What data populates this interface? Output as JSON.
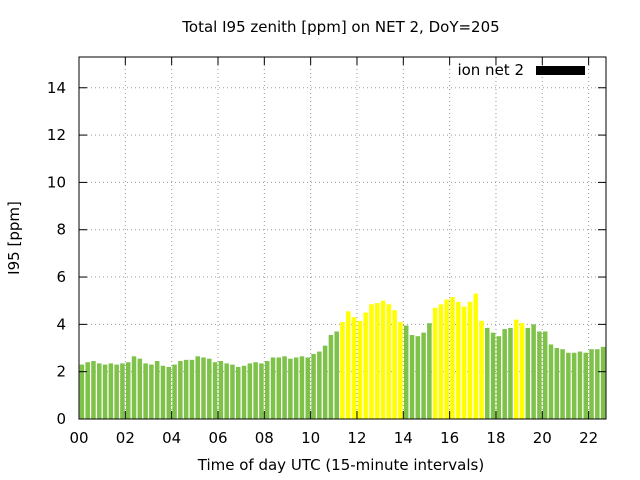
{
  "chart_data": {
    "type": "bar",
    "title": "Total I95 zenith [ppm] on NET 2, DoY=205",
    "xlabel": "Time of day UTC (15-minute intervals)",
    "ylabel": "I95 [ppm]",
    "xlim": [
      0,
      22.75
    ],
    "ylim": [
      0,
      15.3
    ],
    "yticks": [
      0,
      2,
      4,
      6,
      8,
      10,
      12,
      14
    ],
    "xticks": [
      0,
      2,
      4,
      6,
      8,
      10,
      12,
      14,
      16,
      18,
      20,
      22
    ],
    "xtick_labels": [
      "00",
      "02",
      "04",
      "06",
      "08",
      "10",
      "12",
      "14",
      "16",
      "18",
      "20",
      "22"
    ],
    "grid": true,
    "legend": {
      "label": "ion net 2",
      "position": "top-right",
      "color": "#000000"
    },
    "bar_interval_hours": 0.25,
    "colors": {
      "normal": "#7fc24a",
      "elevated": "#ffff00"
    },
    "series": [
      {
        "x": [
          0.25,
          0.5,
          0.75,
          1,
          1.25,
          1.5,
          1.75,
          2,
          2.25,
          2.5,
          2.75,
          3,
          3.25,
          3.5,
          3.75,
          4,
          4.25,
          4.5,
          4.75,
          5,
          5.25,
          5.5,
          5.75,
          6,
          6.25,
          6.5,
          6.75,
          7,
          7.25,
          7.5,
          7.75,
          8,
          8.25,
          8.5,
          8.75,
          9,
          9.25,
          9.5,
          9.75,
          10,
          10.25,
          10.5,
          10.75,
          11,
          11.25,
          11.5,
          11.75,
          12,
          12.25,
          12.5,
          12.75,
          13,
          13.25,
          13.5,
          13.75,
          14,
          14.25,
          14.5,
          14.75,
          15,
          15.25,
          15.5,
          15.75,
          16,
          16.25,
          16.5,
          16.75,
          17,
          17.25,
          17.5,
          17.75,
          18,
          18.25,
          18.5,
          18.75,
          19,
          19.25,
          19.5,
          19.75,
          20,
          20.25,
          20.5,
          20.75,
          21,
          21.25,
          21.5,
          21.75,
          22,
          22.25,
          22.5,
          22.75
        ],
        "values": [
          2.3,
          2.4,
          2.45,
          2.35,
          2.3,
          2.35,
          2.3,
          2.35,
          2.4,
          2.65,
          2.55,
          2.35,
          2.3,
          2.45,
          2.25,
          2.2,
          2.3,
          2.45,
          2.5,
          2.5,
          2.65,
          2.6,
          2.55,
          2.4,
          2.45,
          2.35,
          2.3,
          2.2,
          2.25,
          2.35,
          2.4,
          2.35,
          2.45,
          2.6,
          2.6,
          2.65,
          2.55,
          2.6,
          2.65,
          2.6,
          2.75,
          2.85,
          3.1,
          3.55,
          3.7,
          4.1,
          4.55,
          4.3,
          4.15,
          4.5,
          4.85,
          4.9,
          5.0,
          4.85,
          4.6,
          4.1,
          3.95,
          3.55,
          3.5,
          3.65,
          4.05,
          4.7,
          4.85,
          5.05,
          5.15,
          4.95,
          4.75,
          4.95,
          5.3,
          4.15,
          3.85,
          3.65,
          3.5,
          3.8,
          3.85,
          4.2,
          4.05,
          3.85,
          4.0,
          3.7,
          3.7,
          3.15,
          3.0,
          2.95,
          2.8,
          2.8,
          2.85,
          2.8,
          2.95,
          2.95,
          3.05
        ],
        "levels": [
          "normal",
          "normal",
          "normal",
          "normal",
          "normal",
          "normal",
          "normal",
          "normal",
          "normal",
          "normal",
          "normal",
          "normal",
          "normal",
          "normal",
          "normal",
          "normal",
          "normal",
          "normal",
          "normal",
          "normal",
          "normal",
          "normal",
          "normal",
          "normal",
          "normal",
          "normal",
          "normal",
          "normal",
          "normal",
          "normal",
          "normal",
          "normal",
          "normal",
          "normal",
          "normal",
          "normal",
          "normal",
          "normal",
          "normal",
          "normal",
          "normal",
          "normal",
          "normal",
          "normal",
          "normal",
          "elevated",
          "elevated",
          "elevated",
          "elevated",
          "elevated",
          "elevated",
          "elevated",
          "elevated",
          "elevated",
          "elevated",
          "elevated",
          "normal",
          "normal",
          "normal",
          "normal",
          "normal",
          "elevated",
          "elevated",
          "elevated",
          "elevated",
          "elevated",
          "elevated",
          "elevated",
          "elevated",
          "elevated",
          "normal",
          "normal",
          "normal",
          "normal",
          "normal",
          "elevated",
          "elevated",
          "normal",
          "normal",
          "normal",
          "normal",
          "normal",
          "normal",
          "normal",
          "normal",
          "normal",
          "normal",
          "normal",
          "normal",
          "normal",
          "normal"
        ]
      }
    ]
  }
}
